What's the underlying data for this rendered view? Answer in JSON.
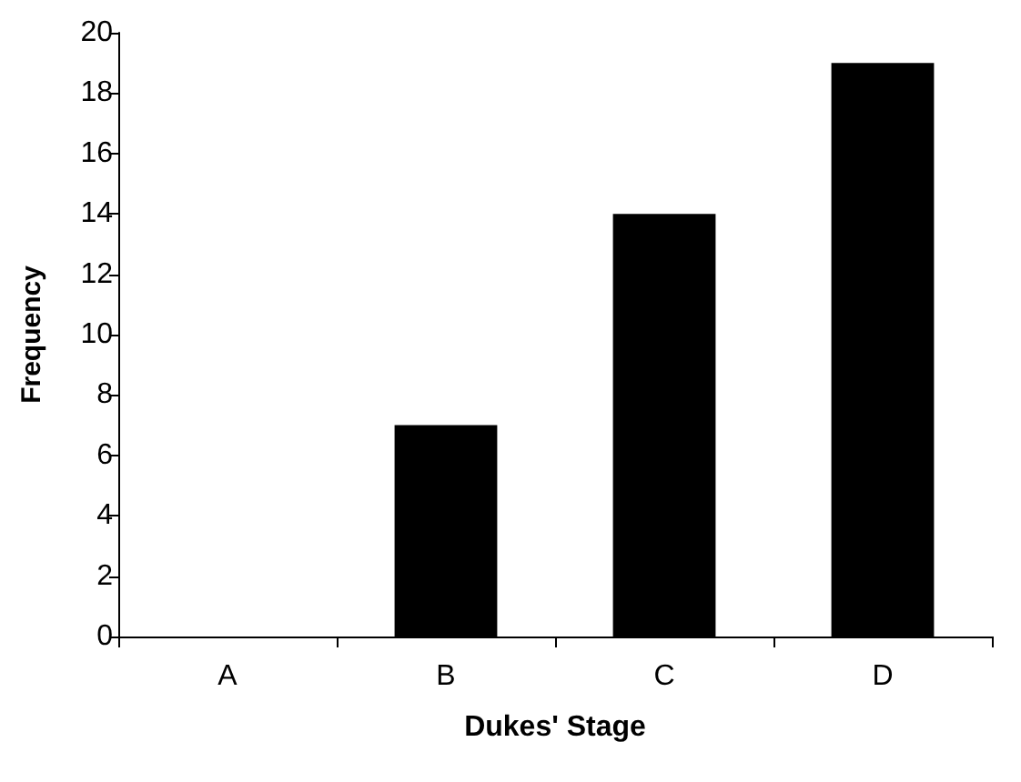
{
  "chart_data": {
    "type": "bar",
    "xlabel": "Dukes' Stage",
    "ylabel": "Frequency",
    "categories": [
      "A",
      "B",
      "C",
      "D"
    ],
    "values": [
      0,
      7,
      14,
      19
    ],
    "color": "#000000",
    "ylim": [
      0,
      20
    ],
    "yticks": [
      0,
      2,
      4,
      6,
      8,
      10,
      12,
      14,
      16,
      18,
      20
    ],
    "grid": false
  }
}
